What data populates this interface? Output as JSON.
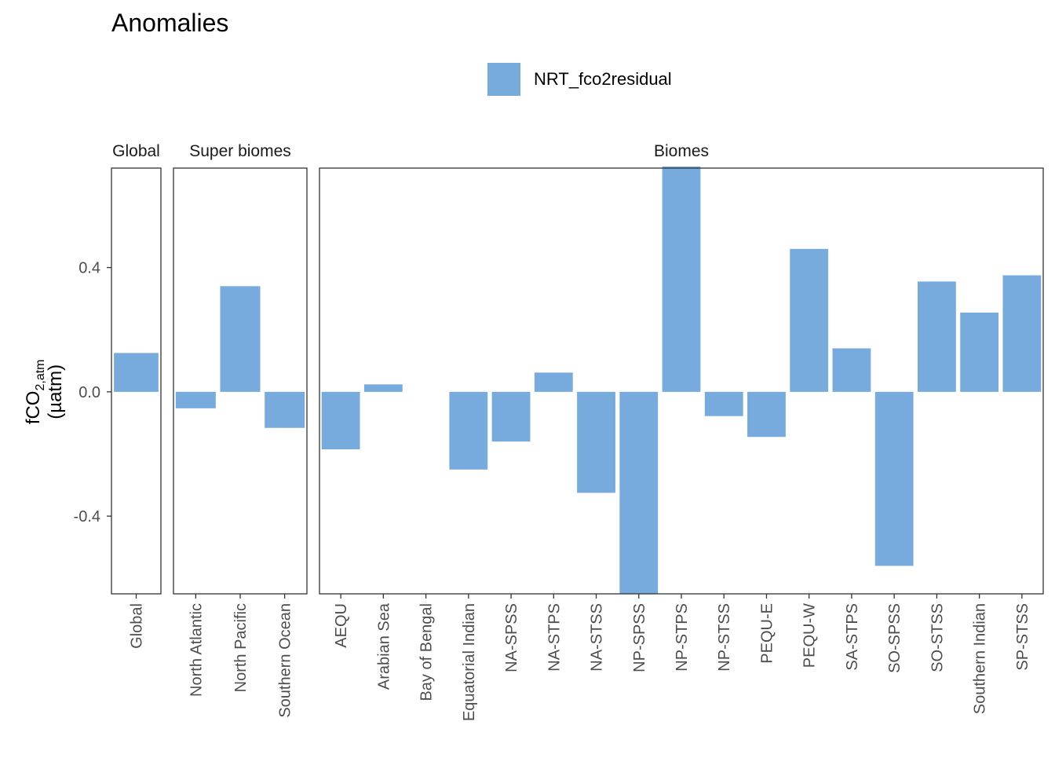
{
  "chart_data": {
    "type": "bar",
    "title": "Anomalies",
    "ylabel_main": "fCO",
    "ylabel_subscript": "2,atm",
    "ylabel_units": "(µatm)",
    "ylim": [
      -0.65,
      0.72
    ],
    "y_ticks": [
      -0.4,
      0.0,
      0.4
    ],
    "y_tick_labels": [
      "-0.4",
      "0.0",
      "0.4"
    ],
    "legend": {
      "position": "top",
      "entries": [
        {
          "name": "NRT_fco2residual",
          "color": "#77AADD"
        }
      ]
    },
    "bar_color": "#77AADD",
    "grid": false,
    "panels": [
      {
        "name": "Global",
        "categories": [
          "Global"
        ],
        "values": [
          0.125
        ]
      },
      {
        "name": "Super biomes",
        "categories": [
          "North Atlantic",
          "North Pacific",
          "Southern Ocean"
        ],
        "values": [
          -0.053,
          0.34,
          -0.116
        ]
      },
      {
        "name": "Biomes",
        "categories": [
          "AEQU",
          "Arabian Sea",
          "Bay of Bengal",
          "Equatorial Indian",
          "NA-SPSS",
          "NA-STPS",
          "NA-STSS",
          "NP-SPSS",
          "NP-STPS",
          "NP-STSS",
          "PEQU-E",
          "PEQU-W",
          "SA-STPS",
          "SO-SPSS",
          "SO-STSS",
          "Southern Indian",
          "SP-STSS"
        ],
        "values": [
          -0.185,
          0.024,
          null,
          -0.25,
          -0.16,
          0.062,
          -0.325,
          -0.65,
          0.725,
          -0.078,
          -0.145,
          0.46,
          0.14,
          -0.56,
          0.355,
          0.255,
          0.375
        ]
      }
    ]
  }
}
